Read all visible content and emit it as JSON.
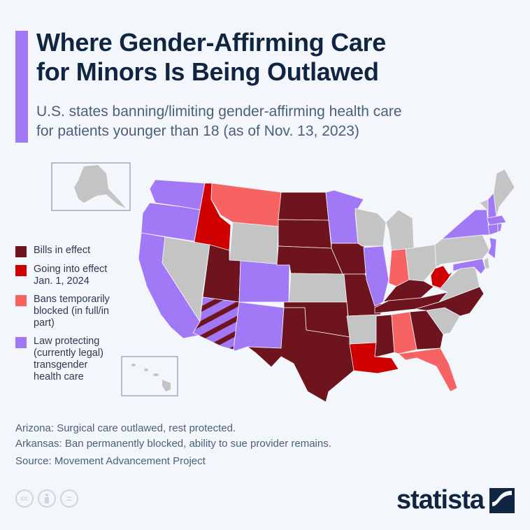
{
  "header": {
    "title_line1": "Where Gender-Affirming Care",
    "title_line2": "for Minors Is Being Outlawed",
    "subtitle_line1": "U.S. states banning/limiting gender-affirming health care",
    "subtitle_line2": "for patients younger than 18 (as of Nov. 13, 2023)"
  },
  "colors": {
    "accent": "#a179f7",
    "bills_in_effect": "#6e141f",
    "going_into_effect": "#d10000",
    "bans_blocked": "#f76262",
    "law_protecting": "#a179f7",
    "no_law": "#c4c4c4",
    "title": "#0f2541"
  },
  "legend": [
    {
      "key": "bills_in_effect",
      "label": "Bills in effect",
      "color": "#6e141f"
    },
    {
      "key": "going_into_effect",
      "label": "Going into effect Jan. 1, 2024",
      "color": "#d10000"
    },
    {
      "key": "bans_blocked",
      "label": "Bans temporarily blocked (in full/in part)",
      "color": "#f76262"
    },
    {
      "key": "law_protecting",
      "label": "Law protecting (currently legal) transgender health care",
      "color": "#a179f7"
    }
  ],
  "chart_data": {
    "type": "choropleth",
    "title": "Where Gender-Affirming Care for Minors Is Being Outlawed",
    "subtitle": "U.S. states banning/limiting gender-affirming health care for patients younger than 18 (as of Nov. 13, 2023)",
    "categories": [
      "Bills in effect",
      "Going into effect Jan. 1, 2024",
      "Bans temporarily blocked (in full/in part)",
      "Law protecting (currently legal) transgender health care",
      "None"
    ],
    "legend_position": "left",
    "states": {
      "WA": "law_protecting",
      "OR": "law_protecting",
      "CA": "law_protecting",
      "ID": "going_into_effect",
      "NV": "no_law",
      "MT": "bans_blocked",
      "WY": "no_law",
      "UT": "bills_in_effect",
      "AZ": "mixed_bills_in_effect_law_protecting",
      "CO": "law_protecting",
      "NM": "law_protecting",
      "ND": "bills_in_effect",
      "SD": "bills_in_effect",
      "NE": "bills_in_effect",
      "KS": "no_law",
      "OK": "bills_in_effect",
      "TX": "bills_in_effect",
      "MN": "law_protecting",
      "IA": "bills_in_effect",
      "MO": "bills_in_effect",
      "AR": "no_law",
      "LA": "going_into_effect",
      "WI": "no_law",
      "IL": "law_protecting",
      "MI": "no_law",
      "IN": "bans_blocked",
      "OH": "no_law",
      "KY": "bills_in_effect",
      "TN": "bills_in_effect",
      "MS": "bills_in_effect",
      "AL": "bans_blocked",
      "GA": "bills_in_effect",
      "FL": "bans_blocked",
      "SC": "no_law",
      "NC": "bills_in_effect",
      "VA": "no_law",
      "WV": "going_into_effect",
      "PA": "no_law",
      "NY": "law_protecting",
      "VT": "no_law",
      "NH": "law_protecting",
      "ME": "no_law",
      "MA": "law_protecting",
      "CT": "law_protecting",
      "RI": "law_protecting",
      "NJ": "law_protecting",
      "DE": "no_law",
      "MD": "law_protecting",
      "DC": "law_protecting",
      "AK": "no_law",
      "HI": "no_law"
    },
    "notes": [
      "Arizona: Surgical care outlawed, rest protected.",
      "Arkansas: Ban permanently blocked, ability to sue provider remains."
    ],
    "source": "Source: Movement Advancement Project"
  },
  "notes": {
    "arizona": "Arizona: Surgical care outlawed, rest protected.",
    "arkansas": "Arkansas: Ban permanently blocked, ability to sue provider remains.",
    "source": "Source: Movement Advancement Project"
  },
  "footer": {
    "license_icons": [
      "cc-icon",
      "by-icon",
      "nd-icon"
    ],
    "cc_label": "cc",
    "nd_label": "=",
    "brand": "statista"
  }
}
